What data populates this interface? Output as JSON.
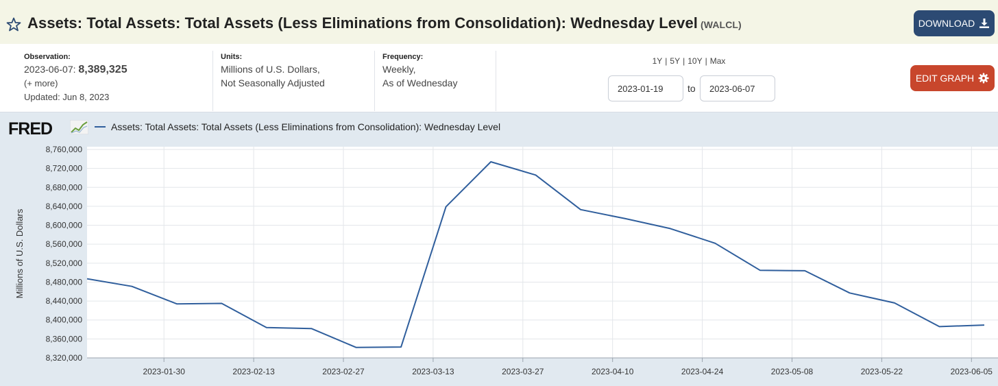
{
  "header": {
    "title": "Assets: Total Assets: Total Assets (Less Eliminations from Consolidation): Wednesday Level",
    "series_id": "(WALCL)",
    "download_label": "DOWNLOAD"
  },
  "meta": {
    "observation_label": "Observation:",
    "observation_date": "2023-06-07:",
    "observation_value": "8,389,325",
    "more": "(+ more)",
    "updated": "Updated: Jun 8, 2023",
    "units_label": "Units:",
    "units_line1": "Millions of U.S. Dollars,",
    "units_line2": "Not Seasonally Adjusted",
    "frequency_label": "Frequency:",
    "frequency_line1": "Weekly,",
    "frequency_line2": "As of Wednesday"
  },
  "controls": {
    "range_1y": "1Y",
    "range_5y": "5Y",
    "range_10y": "10Y",
    "range_max": "Max",
    "separator": "|",
    "start_date": "2023-01-19",
    "to": "to",
    "end_date": "2023-06-07",
    "edit_label": "EDIT GRAPH"
  },
  "brand": {
    "logo": "FRED"
  },
  "colors": {
    "series": "#2f5e9c",
    "download": "#2c4a73",
    "edit": "#c8462c",
    "chart_bg": "#e1e9f0"
  },
  "icons": {
    "favorite": "star-icon",
    "download": "download-icon",
    "edit": "gear-icon",
    "logo_graph": "chart-line-icon"
  },
  "chart_data": {
    "type": "line",
    "title": "",
    "xlabel": "",
    "ylabel": "Millions of U.S. Dollars",
    "x_start": "2023-01-18",
    "x_end": "2023-06-07",
    "ylim": [
      8320000,
      8760000
    ],
    "grid": true,
    "legend_position": "top-left",
    "y_ticks": [
      8320000,
      8360000,
      8400000,
      8440000,
      8480000,
      8520000,
      8560000,
      8600000,
      8640000,
      8680000,
      8720000,
      8760000
    ],
    "y_tick_labels": [
      "8,320,000",
      "8,360,000",
      "8,400,000",
      "8,440,000",
      "8,480,000",
      "8,520,000",
      "8,560,000",
      "8,600,000",
      "8,640,000",
      "8,680,000",
      "8,720,000",
      "8,760,000"
    ],
    "x_ticks": [
      "2023-01-30",
      "2023-02-13",
      "2023-02-27",
      "2023-03-13",
      "2023-03-27",
      "2023-04-10",
      "2023-04-24",
      "2023-05-08",
      "2023-05-22",
      "2023-06-05"
    ],
    "series": [
      {
        "name": "Assets: Total Assets: Total Assets (Less Eliminations from Consolidation): Wednesday Level",
        "x": [
          "2023-01-18",
          "2023-01-25",
          "2023-02-01",
          "2023-02-08",
          "2023-02-15",
          "2023-02-22",
          "2023-03-01",
          "2023-03-08",
          "2023-03-15",
          "2023-03-22",
          "2023-03-29",
          "2023-04-05",
          "2023-04-12",
          "2023-04-19",
          "2023-04-26",
          "2023-05-03",
          "2023-05-10",
          "2023-05-17",
          "2023-05-24",
          "2023-05-31",
          "2023-06-07"
        ],
        "values": [
          8487000,
          8471000,
          8434000,
          8435000,
          8384000,
          8382000,
          8342000,
          8343000,
          8639000,
          8734000,
          8706000,
          8633000,
          8614000,
          8593000,
          8562000,
          8505000,
          8504000,
          8457000,
          8436000,
          8386000,
          8389325
        ]
      }
    ]
  }
}
